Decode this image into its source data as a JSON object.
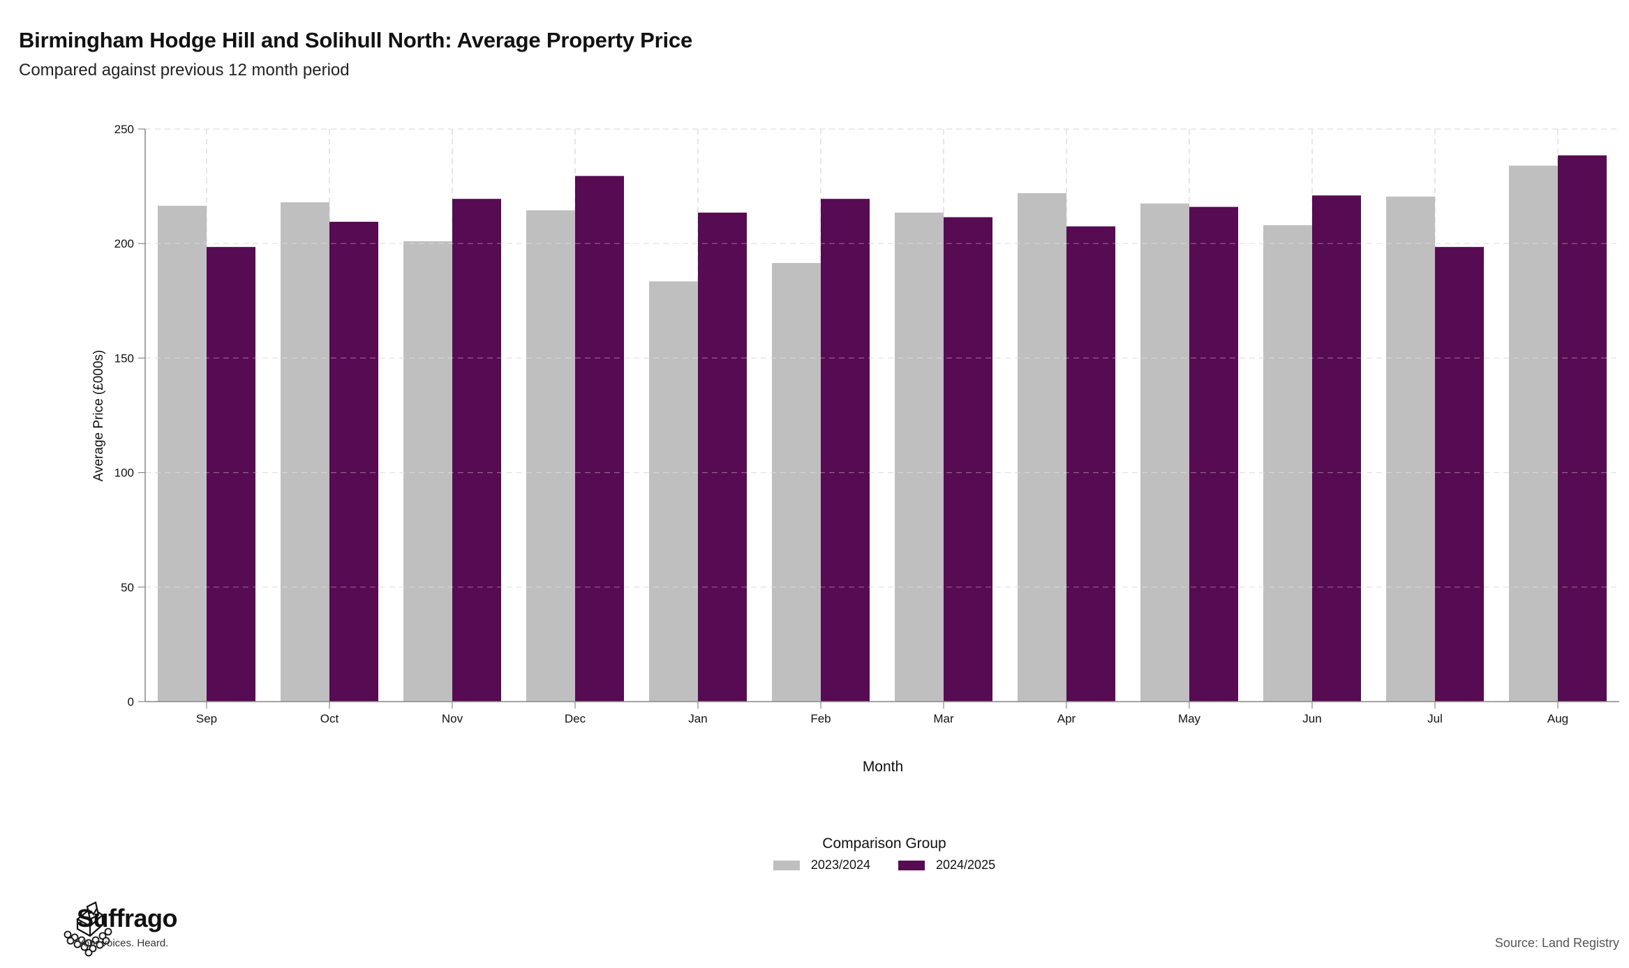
{
  "header": {
    "title": "Birmingham Hodge Hill and Solihull North: Average Property Price",
    "subtitle": "Compared against previous 12 month period"
  },
  "footer": {
    "brand": "Suffrago",
    "tagline": "Your voices. Heard.",
    "source": "Source: Land Registry",
    "logo_icon": "ballot-box-icon"
  },
  "chart_data": {
    "type": "bar",
    "xlabel": "Month",
    "ylabel": "Average Price (£000s)",
    "ylim": [
      0,
      250
    ],
    "yticks": [
      0,
      50,
      100,
      150,
      200,
      250
    ],
    "grid": true,
    "legend_title": "Comparison Group",
    "legend_position": "bottom",
    "categories": [
      "Sep",
      "Oct",
      "Nov",
      "Dec",
      "Jan",
      "Feb",
      "Mar",
      "Apr",
      "May",
      "Jun",
      "Jul",
      "Aug"
    ],
    "series": [
      {
        "name": "2023/2024",
        "color": "#bfbfbf",
        "values": [
          216.5,
          218,
          201,
          214.5,
          183.5,
          191.5,
          213.5,
          222,
          217.5,
          208,
          220.5,
          234
        ]
      },
      {
        "name": "2024/2025",
        "color": "#560b52",
        "values": [
          198.5,
          209.5,
          219.5,
          229.5,
          213.5,
          219.5,
          211.5,
          207.5,
          216,
          221,
          198.5,
          238.5
        ]
      }
    ]
  }
}
